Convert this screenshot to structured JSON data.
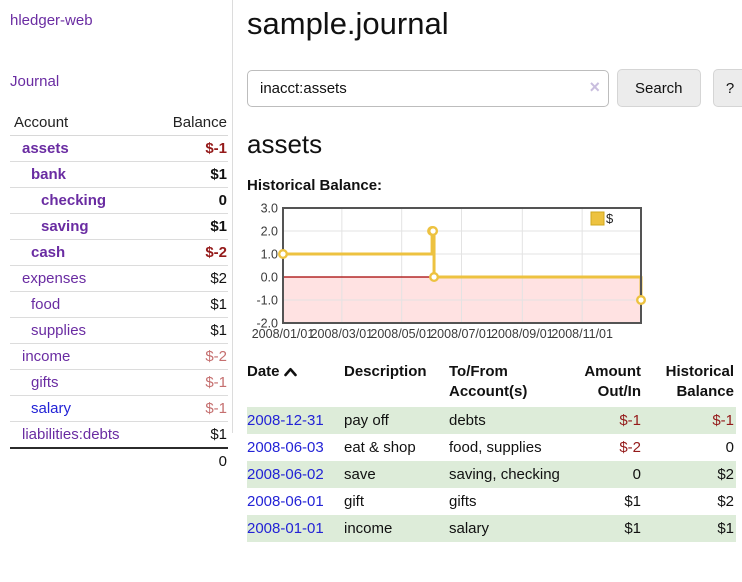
{
  "app": {
    "title": "hledger-web"
  },
  "sidebar": {
    "journal_link": "Journal",
    "accounts_table": {
      "headers": {
        "account": "Account",
        "balance": "Balance"
      },
      "rows": [
        {
          "name": "assets",
          "depth": 1,
          "bold": true,
          "balance": "$-1",
          "balance_style": "neg-strong"
        },
        {
          "name": "bank",
          "depth": 2,
          "bold": true,
          "balance": "$1",
          "balance_style": "normal"
        },
        {
          "name": "checking",
          "depth": 3,
          "bold": true,
          "balance": "0",
          "balance_style": "normal"
        },
        {
          "name": "saving",
          "depth": 3,
          "bold": true,
          "balance": "$1",
          "balance_style": "normal"
        },
        {
          "name": "cash",
          "depth": 2,
          "bold": true,
          "balance": "$-2",
          "balance_style": "neg-strong"
        },
        {
          "name": "expenses",
          "depth": 1,
          "bold": false,
          "balance": "$2",
          "balance_style": "normal"
        },
        {
          "name": "food",
          "depth": 2,
          "bold": false,
          "balance": "$1",
          "balance_style": "normal"
        },
        {
          "name": "supplies",
          "depth": 2,
          "bold": false,
          "balance": "$1",
          "balance_style": "normal"
        },
        {
          "name": "income",
          "depth": 1,
          "bold": false,
          "balance": "$-2",
          "balance_style": "neg-muted"
        },
        {
          "name": "gifts",
          "depth": 2,
          "bold": false,
          "balance": "$-1",
          "balance_style": "neg-muted"
        },
        {
          "name": "salary",
          "depth": 2,
          "bold": false,
          "balance": "$-1",
          "balance_style": "neg-muted",
          "link_color": "blue"
        },
        {
          "name": "liabilities:debts",
          "depth": 1,
          "bold": false,
          "balance": "$1",
          "balance_style": "normal"
        }
      ],
      "total": "0"
    }
  },
  "header": {
    "title": "sample.journal"
  },
  "search": {
    "query": "inacct:assets",
    "clear_icon": "×",
    "search_button": "Search",
    "help_button": "?"
  },
  "account_page": {
    "heading": "assets",
    "chart_label": "Historical Balance:"
  },
  "chart_data": {
    "type": "line",
    "step": true,
    "title": "Historical Balance",
    "series": [
      {
        "name": "$",
        "color": "#edc240",
        "points": [
          [
            "2008-01-01",
            1
          ],
          [
            "2008-06-01",
            2
          ],
          [
            "2008-06-02",
            2
          ],
          [
            "2008-06-03",
            0
          ],
          [
            "2008-12-31",
            -1
          ]
        ]
      }
    ],
    "x_ticks": [
      "2008/01/01",
      "2008/03/01",
      "2008/05/01",
      "2008/07/01",
      "2008/09/01",
      "2008/11/01"
    ],
    "y_ticks": [
      3.0,
      2.0,
      1.0,
      0.0,
      -1.0,
      -2.0
    ],
    "ylim": [
      -2,
      3
    ],
    "x_range_days": 365,
    "grid": true,
    "legend": {
      "label": "$",
      "position": "top-right"
    },
    "negative_region": {
      "below": 0,
      "fill": "#ffe2e2",
      "line_color": "#a40000"
    }
  },
  "register_table": {
    "headers": {
      "date": "Date",
      "description": "Description",
      "accounts": "To/From Account(s)",
      "amount": "Amount Out/In",
      "balance": "Historical Balance"
    },
    "rows": [
      {
        "date": "2008-12-31",
        "description": "pay off",
        "accounts": "debts",
        "amount": "$-1",
        "amount_neg": true,
        "balance": "$-1",
        "balance_neg": true,
        "shaded": true
      },
      {
        "date": "2008-06-03",
        "description": "eat & shop",
        "accounts": "food, supplies",
        "amount": "$-2",
        "amount_neg": true,
        "balance": "0",
        "balance_neg": false,
        "shaded": false
      },
      {
        "date": "2008-06-02",
        "description": "save",
        "accounts": "saving, checking",
        "amount": "0",
        "amount_neg": false,
        "balance": "$2",
        "balance_neg": false,
        "shaded": true
      },
      {
        "date": "2008-06-01",
        "description": "gift",
        "accounts": "gifts",
        "amount": "$1",
        "amount_neg": false,
        "balance": "$2",
        "balance_neg": false,
        "shaded": false
      },
      {
        "date": "2008-01-01",
        "description": "income",
        "accounts": "salary",
        "amount": "$1",
        "amount_neg": false,
        "balance": "$1",
        "balance_neg": false,
        "shaded": true
      }
    ]
  },
  "colors": {
    "link_purple": "#6a2ca2",
    "link_blue": "#2323d6",
    "negative_strong": "#941a1a",
    "negative_muted": "#c56f6f",
    "series_gold": "#edc240",
    "negative_area_pink": "#ffe2e2",
    "zero_line_red": "#a40000",
    "shaded_row_green": "#ddecd9",
    "chart_frame": "#545454",
    "grid_line": "#e3e3e3"
  }
}
